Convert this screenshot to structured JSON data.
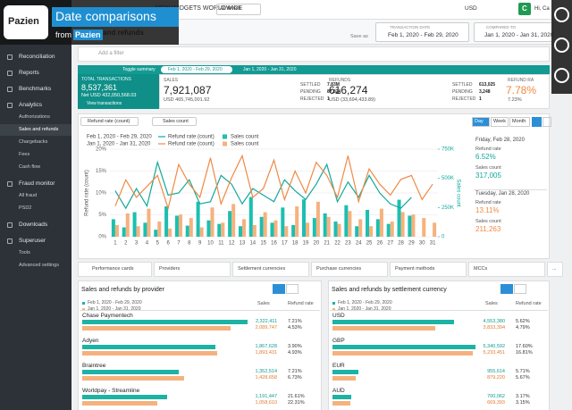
{
  "overlay": {
    "brand": "Pazien",
    "title": "Date comparisons",
    "from": "from",
    "from_brand": "Pazien"
  },
  "topbar": {
    "org": "NEW WIDGETS WORLDWIDE",
    "level": "All levels",
    "save": "Save as",
    "date_label": "TRANSACTION DATE",
    "date": "Feb 1, 2020 - Feb 29, 2020",
    "compare_label": "COMPARED TO",
    "compare": "Jan 1, 2020 - Jan 31, 2020",
    "currency": "USD",
    "avatar": "C",
    "greeting": "Hi, Ca"
  },
  "page_title": "Sales and refunds",
  "sidebar": [
    {
      "label": "Reconciliation"
    },
    {
      "label": "Reports"
    },
    {
      "label": "Benchmarks"
    },
    {
      "label": "Analytics",
      "items": [
        {
          "label": "Authorizations"
        },
        {
          "label": "Sales and refunds",
          "active": true
        },
        {
          "label": "Chargebacks"
        },
        {
          "label": "Fees"
        },
        {
          "label": "Cash flow"
        }
      ]
    },
    {
      "label": "Fraud monitor",
      "items": [
        {
          "label": "All fraud"
        },
        {
          "label": "PSD2"
        }
      ]
    },
    {
      "label": "Downloads"
    },
    {
      "label": "Superuser",
      "items": [
        {
          "label": "Tools"
        },
        {
          "label": "Advanced settings"
        }
      ]
    }
  ],
  "filter": "Add a filter",
  "summary": {
    "toggle": "Toggle summary",
    "period_a": "Feb 1, 2020 - Feb 29, 2020",
    "period_b": "Jan 1, 2020 - Jan 31, 2020",
    "total": {
      "label": "TOTAL TRANSACTIONS",
      "value": "8,537,361",
      "net": "Net USD 432,050,568.03",
      "link": "View transactions"
    },
    "sales": {
      "label": "SALES",
      "value": "7,921,087",
      "amount": "USD 465,745,001.92",
      "status": [
        [
          "SETTLED",
          "7.83M"
        ],
        [
          "PENDING",
          "87,824"
        ],
        [
          "REJECTED",
          "1"
        ]
      ]
    },
    "refunds": {
      "label": "REFUNDS",
      "value": "616,274",
      "amount": "USD (33,694,433.89)",
      "status": [
        [
          "SETTLED",
          "613,025"
        ],
        [
          "PENDING",
          "3,248"
        ],
        [
          "REJECTED",
          "1"
        ]
      ]
    },
    "refund_rate": {
      "label": "REFUND RA",
      "value": "7.78%",
      "compare": "7.23%"
    }
  },
  "controls": {
    "metric_a": "Refund rate (count)",
    "metric_b": "Sales count",
    "granularity": [
      {
        "label": "Day",
        "active": true
      },
      {
        "label": "Week"
      },
      {
        "label": "Month"
      }
    ]
  },
  "details": [
    {
      "date": "Friday, Feb 28, 2020",
      "color": "#12a89c",
      "metrics": [
        [
          "Refund rate",
          "6.52%"
        ],
        [
          "Sales count",
          "317,005"
        ]
      ]
    },
    {
      "date": "Tuesday, Jan 28, 2020",
      "color": "#ee8a45",
      "metrics": [
        [
          "Refund rate",
          "13.11%"
        ],
        [
          "Sales count",
          "211,263"
        ]
      ]
    }
  ],
  "chart_data": {
    "type": "combo",
    "periods": [
      "Feb 1, 2020 - Feb 29, 2020",
      "Jan 1, 2020 - Jan 31, 2020"
    ],
    "categories": [
      1,
      2,
      3,
      4,
      5,
      6,
      7,
      8,
      9,
      10,
      11,
      12,
      13,
      14,
      15,
      16,
      17,
      18,
      19,
      20,
      21,
      22,
      23,
      24,
      25,
      26,
      27,
      28,
      29,
      30,
      31
    ],
    "ylabel": "Refund rate (count)",
    "y2label": "Sales count",
    "ylim": [
      0,
      20
    ],
    "yticks": [
      {
        "value": 0,
        "label": "0%"
      },
      {
        "value": 5,
        "label": "5%"
      },
      {
        "value": 10,
        "label": "10%"
      },
      {
        "value": 15,
        "label": "15%"
      },
      {
        "value": 20,
        "label": "20%"
      }
    ],
    "y2lim": [
      0,
      750000
    ],
    "y2ticks": [
      0,
      {
        "value": 250000,
        "label": "250K"
      },
      {
        "value": 500000,
        "label": "500K"
      },
      {
        "value": 750000,
        "label": "750K"
      }
    ],
    "grid": true,
    "series": [
      {
        "name": "Refund rate (count)",
        "type": "line",
        "color": "#12a89c",
        "values": [
          10.5,
          6.5,
          11,
          7,
          17,
          9.5,
          10,
          13,
          7.5,
          8,
          14,
          12,
          7.5,
          11,
          9.5,
          8,
          13,
          10.5,
          8.5,
          12,
          16.5,
          8,
          12.5,
          9,
          14,
          10,
          7.5,
          6.52,
          9,
          null,
          null
        ]
      },
      {
        "name": "Sales count",
        "type": "bar",
        "axis": "y2",
        "color": "#1cbfb0",
        "values": [
          150000,
          80000,
          210000,
          120000,
          60000,
          260000,
          180000,
          95000,
          300000,
          140000,
          110000,
          220000,
          90000,
          340000,
          170000,
          120000,
          250000,
          100000,
          320000,
          160000,
          200000,
          130000,
          270000,
          90000,
          230000,
          150000,
          110000,
          317005,
          180000,
          null,
          null
        ]
      },
      {
        "name": "Refund rate (count)",
        "type": "line",
        "color": "#ee8a45",
        "values": [
          7,
          13,
          9,
          11.5,
          14,
          6.5,
          16.5,
          12,
          9,
          18,
          7.5,
          13.5,
          18.5,
          9,
          11,
          17.5,
          8.5,
          15,
          10,
          17,
          14,
          9,
          18.5,
          8,
          15.5,
          12,
          9.5,
          13.11,
          14,
          8.5,
          12
        ]
      },
      {
        "name": "Sales count",
        "type": "bar",
        "axis": "y2",
        "color": "#f5b27e",
        "values": [
          100000,
          200000,
          90000,
          240000,
          130000,
          70000,
          190000,
          160000,
          80000,
          250000,
          120000,
          280000,
          150000,
          100000,
          210000,
          140000,
          90000,
          260000,
          120000,
          300000,
          170000,
          110000,
          220000,
          150000,
          90000,
          240000,
          130000,
          211263,
          190000,
          160000,
          120000
        ]
      }
    ]
  },
  "tabs": [
    "Performance cards",
    "Providers",
    "Settlement currencies",
    "Purchase currencies",
    "Payment methods",
    "MCCs",
    "..."
  ],
  "panels": [
    {
      "title": "Sales and refunds by provider",
      "periods": [
        "Feb 1, 2020 - Feb 29, 2020",
        "Jan 1, 2020 - Jan 31, 2020"
      ],
      "colors": [
        "#1cb3a5",
        "#f5b27e"
      ],
      "columns": [
        "Sales",
        "Refund rate"
      ],
      "rows": [
        {
          "name": "Chase Paymentech",
          "sales": [
            2322411,
            2089747
          ],
          "sales_labels": [
            "2,322,411",
            "2,089,747"
          ],
          "rates": [
            "7.21%",
            "4.53%"
          ]
        },
        {
          "name": "Adyen",
          "sales": [
            1867628,
            1893431
          ],
          "sales_labels": [
            "1,867,628",
            "1,893,431"
          ],
          "rates": [
            "3.90%",
            "4.93%"
          ]
        },
        {
          "name": "Braintree",
          "sales": [
            1352514,
            1428658
          ],
          "sales_labels": [
            "1,352,514",
            "1,428,658"
          ],
          "rates": [
            "7.21%",
            "6.73%"
          ]
        },
        {
          "name": "Worldpay - Streamline",
          "sales": [
            1191447,
            1058610
          ],
          "sales_labels": [
            "1,191,447",
            "1,058,610"
          ],
          "rates": [
            "21.61%",
            "22.31%"
          ]
        }
      ]
    },
    {
      "title": "Sales and refunds by settlement currency",
      "periods": [
        "Feb 1, 2020 - Feb 29, 2020",
        "Jan 1, 2020 - Jan 31, 2020"
      ],
      "colors": [
        "#1cb3a5",
        "#f5b27e"
      ],
      "columns": [
        "Sales",
        "Refund rate"
      ],
      "rows": [
        {
          "name": "USD",
          "sales": [
            4553380,
            3833394
          ],
          "sales_labels": [
            "4,553,380",
            "3,833,394"
          ],
          "rates": [
            "5.62%",
            "4.79%"
          ]
        },
        {
          "name": "GBP",
          "sales": [
            5340592,
            5233451
          ],
          "sales_labels": [
            "5,340,592",
            "5,233,451"
          ],
          "rates": [
            "17.60%",
            "16.81%"
          ]
        },
        {
          "name": "EUR",
          "sales": [
            955614,
            879220
          ],
          "sales_labels": [
            "955,614",
            "879,220"
          ],
          "rates": [
            "5.71%",
            "5.67%"
          ]
        },
        {
          "name": "AUD",
          "sales": [
            700062,
            669393
          ],
          "sales_labels": [
            "700,062",
            "669,393"
          ],
          "rates": [
            "3.17%",
            "3.15%"
          ]
        }
      ]
    }
  ]
}
